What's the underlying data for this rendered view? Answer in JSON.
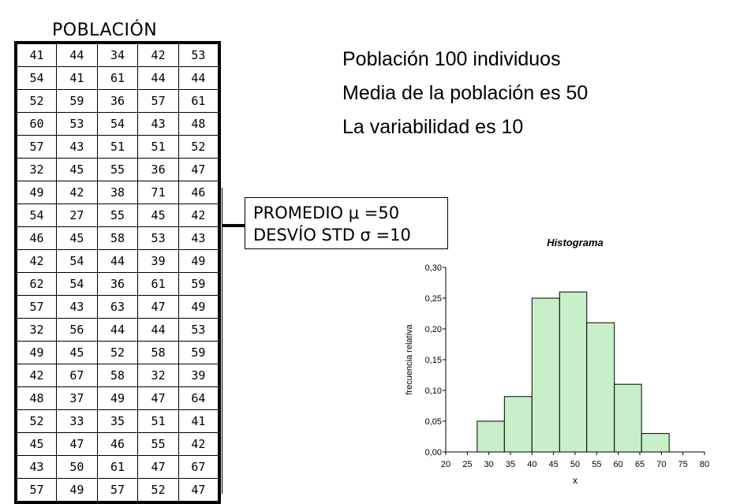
{
  "population": {
    "title": "POBLACIÓN",
    "rows": [
      [
        "41",
        "44",
        "34",
        "42",
        "53"
      ],
      [
        "54",
        "41",
        "61",
        "44",
        "44"
      ],
      [
        "52",
        "59",
        "36",
        "57",
        "61"
      ],
      [
        "60",
        "53",
        "54",
        "43",
        "48"
      ],
      [
        "57",
        "43",
        "51",
        "51",
        "52"
      ],
      [
        "32",
        "45",
        "55",
        "36",
        "47"
      ],
      [
        "49",
        "42",
        "38",
        "71",
        "46"
      ],
      [
        "54",
        "27",
        "55",
        "45",
        "42"
      ],
      [
        "46",
        "45",
        "58",
        "53",
        "43"
      ],
      [
        "42",
        "54",
        "44",
        "39",
        "49"
      ],
      [
        "62",
        "54",
        "36",
        "61",
        "59"
      ],
      [
        "57",
        "43",
        "63",
        "47",
        "49"
      ],
      [
        "32",
        "56",
        "44",
        "44",
        "53"
      ],
      [
        "49",
        "45",
        "52",
        "58",
        "59"
      ],
      [
        "42",
        "67",
        "58",
        "32",
        "39"
      ],
      [
        "48",
        "37",
        "49",
        "47",
        "64"
      ],
      [
        "52",
        "33",
        "35",
        "51",
        "41"
      ],
      [
        "45",
        "47",
        "46",
        "55",
        "42"
      ],
      [
        "43",
        "50",
        "61",
        "47",
        "67"
      ],
      [
        "57",
        "49",
        "57",
        "52",
        "47"
      ]
    ]
  },
  "stats": {
    "mean_line": "PROMEDIO μ =50",
    "std_line": "DESVÍO STD σ =10"
  },
  "info": {
    "line1": "Población 100 individuos",
    "line2": "Media de la población es 50",
    "line3": "La variabilidad es 10"
  },
  "chart_data": {
    "type": "bar",
    "title": "Histograma",
    "xlabel": "x",
    "ylabel": "frecuencia relativa",
    "xlim": [
      20,
      80
    ],
    "ylim": [
      0,
      0.3
    ],
    "xticks": [
      "20",
      "25",
      "30",
      "35",
      "40",
      "45",
      "50",
      "55",
      "60",
      "65",
      "70",
      "75",
      "80"
    ],
    "yticks": [
      "0,00",
      "0,05",
      "0,10",
      "0,15",
      "0,20",
      "0,25",
      "0,30"
    ],
    "bins": [
      {
        "x0": 27.3,
        "x1": 33.6,
        "value": 0.05
      },
      {
        "x0": 33.6,
        "x1": 40.0,
        "value": 0.09
      },
      {
        "x0": 40.0,
        "x1": 46.4,
        "value": 0.25
      },
      {
        "x0": 46.4,
        "x1": 52.7,
        "value": 0.26
      },
      {
        "x0": 52.7,
        "x1": 59.1,
        "value": 0.21
      },
      {
        "x0": 59.1,
        "x1": 65.4,
        "value": 0.11
      },
      {
        "x0": 65.4,
        "x1": 71.8,
        "value": 0.03
      }
    ],
    "bar_color": "#c8f0c8",
    "bar_edge": "#000000"
  }
}
